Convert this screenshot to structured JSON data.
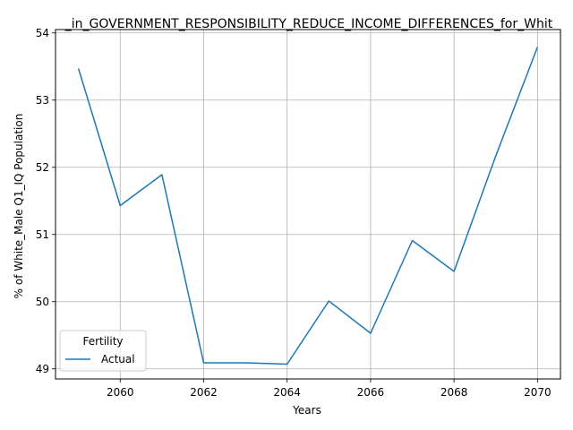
{
  "chart_data": {
    "type": "line",
    "title": "_in_GOVERNMENT_RESPONSIBILITY_REDUCE_INCOME_DIFFERENCES_for_Whit",
    "xlabel": "Years",
    "ylabel": "% of White_Male Q1_IQ Population",
    "xlim": [
      2058.45,
      2070.55
    ],
    "ylim": [
      48.85,
      54.05
    ],
    "xticks": [
      2060,
      2062,
      2064,
      2066,
      2068,
      2070
    ],
    "yticks": [
      49,
      50,
      51,
      52,
      53,
      54
    ],
    "grid": true,
    "legend": {
      "title": "Fertility",
      "placement": "lower left"
    },
    "series": [
      {
        "name": "Actual",
        "color": "#1f77b4",
        "x": [
          2059,
          2060,
          2061,
          2062,
          2063,
          2064,
          2065,
          2066,
          2067,
          2068,
          2069,
          2070
        ],
        "y": [
          53.47,
          51.43,
          51.89,
          49.09,
          49.09,
          49.07,
          50.01,
          49.53,
          50.91,
          50.45,
          52.17,
          53.79
        ]
      }
    ]
  }
}
